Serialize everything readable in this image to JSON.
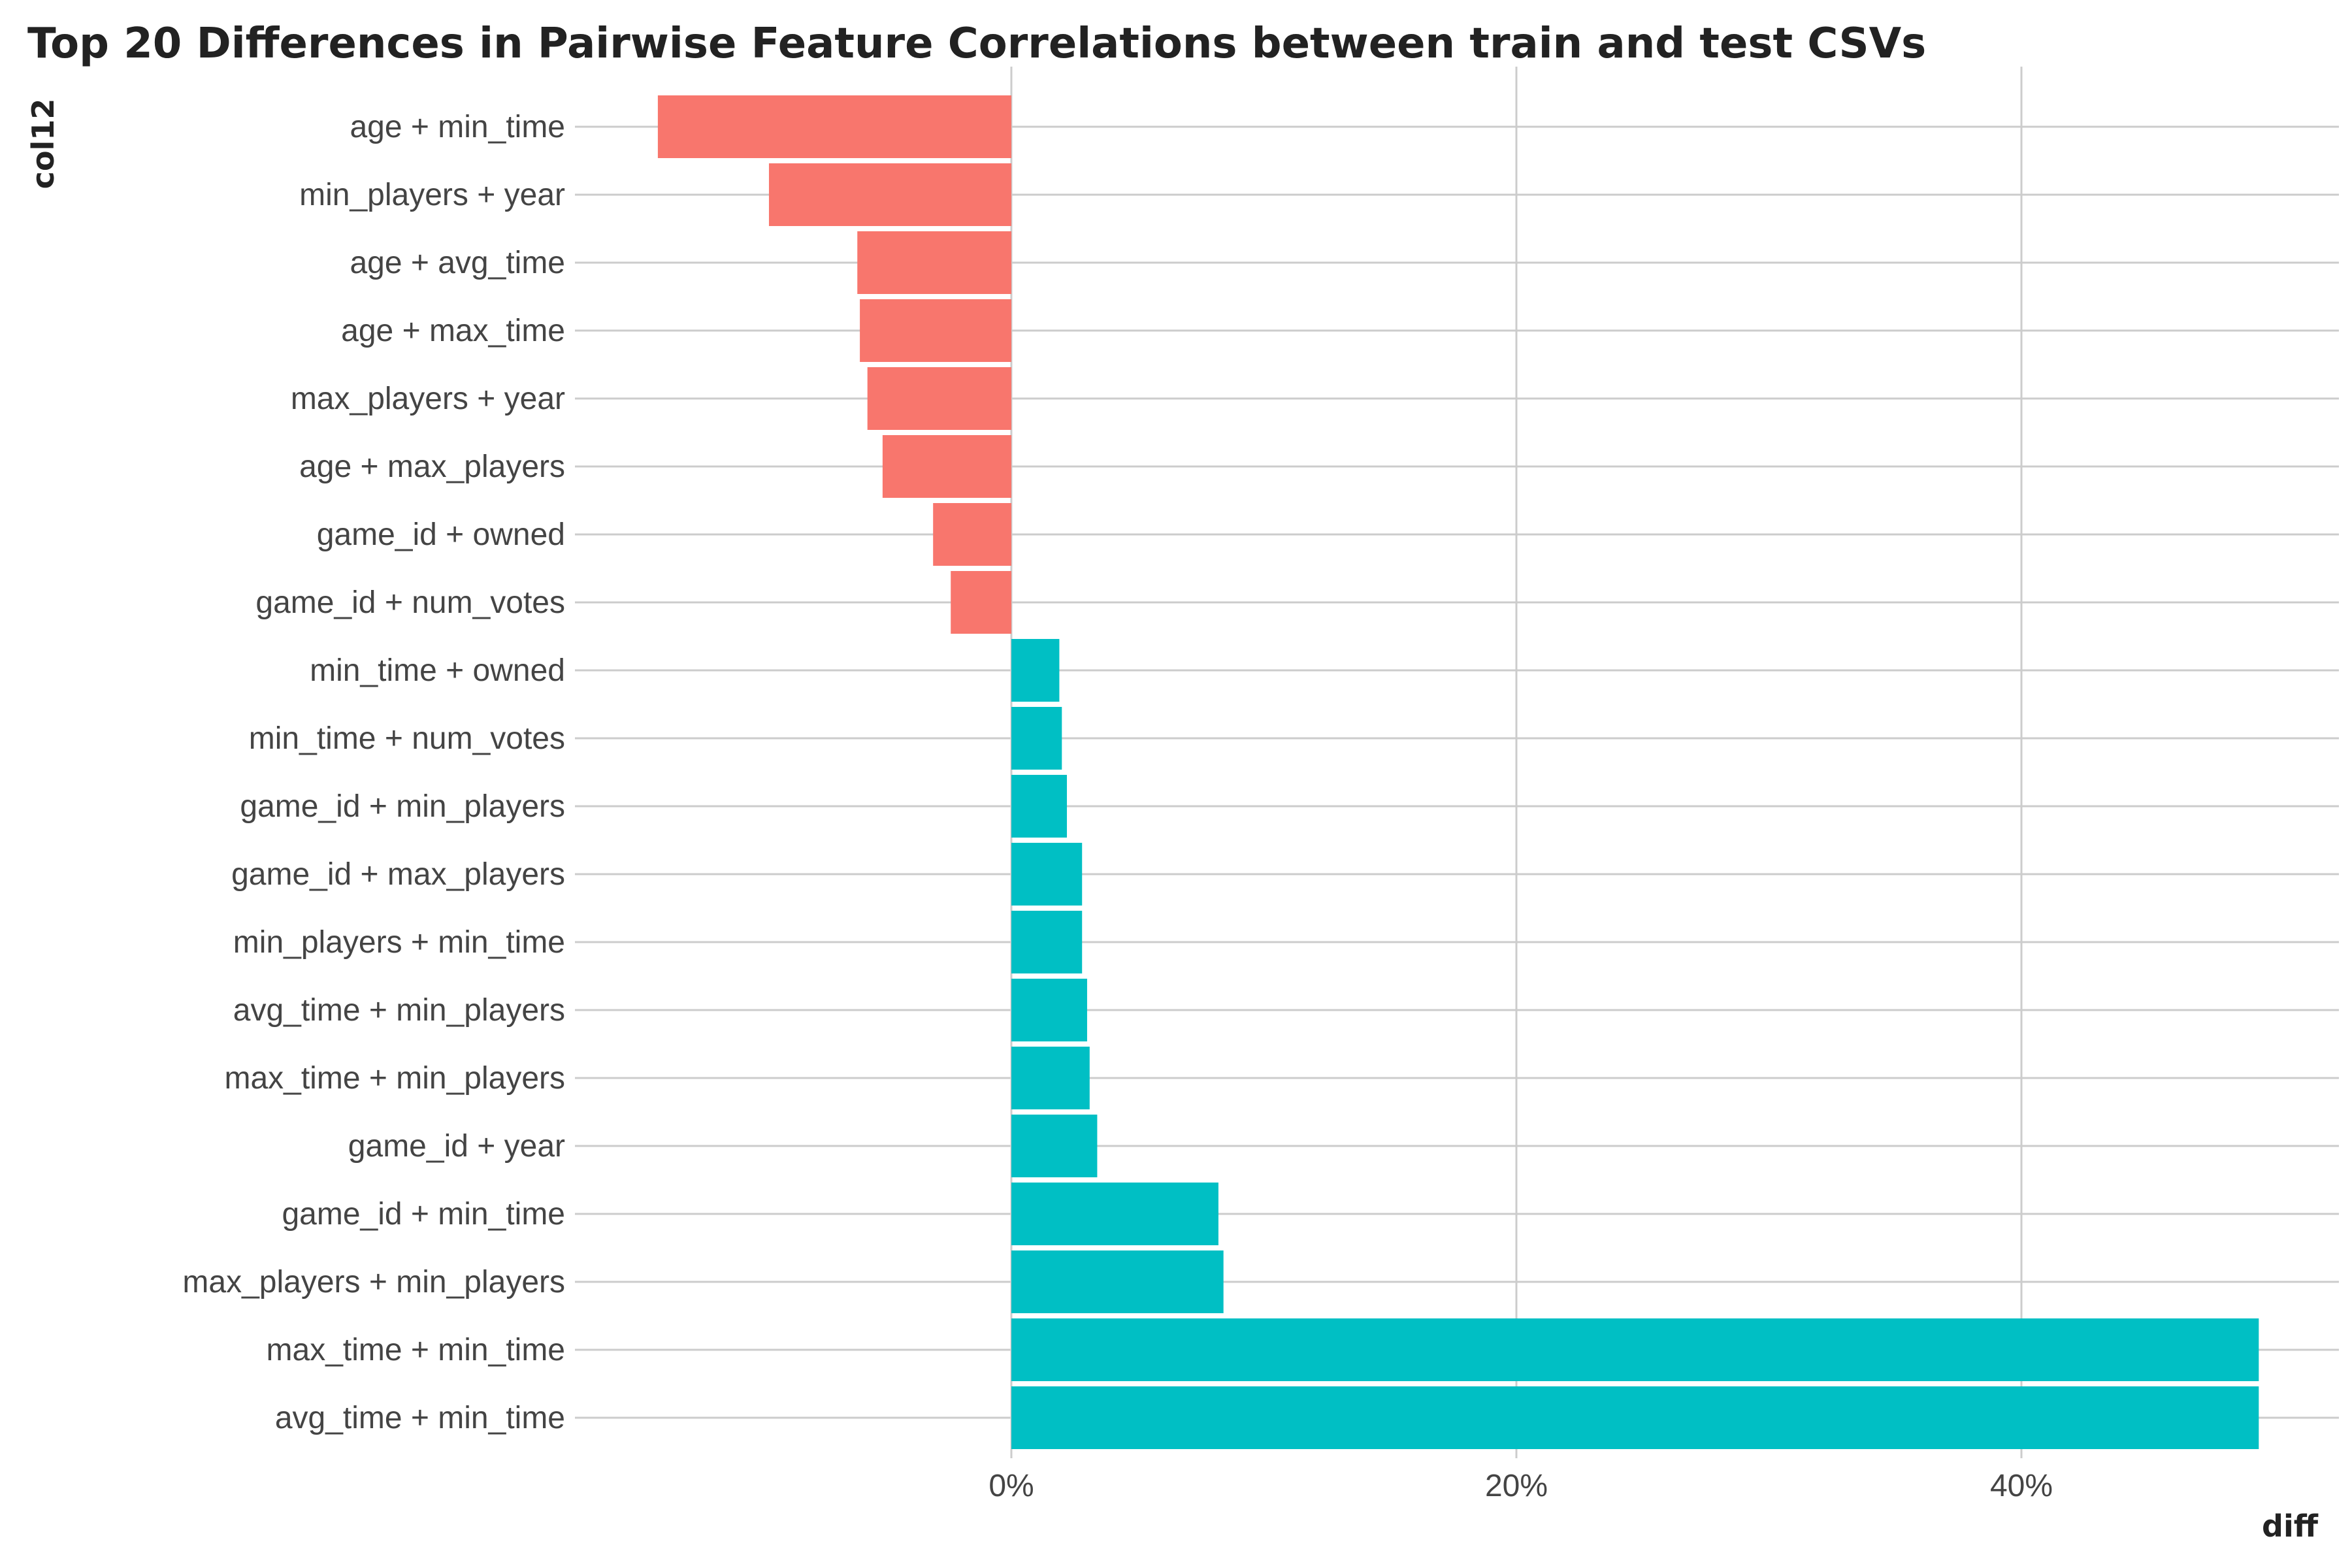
{
  "chart_data": {
    "type": "bar",
    "orientation": "horizontal",
    "title": "Top 20 Differences in Pairwise Feature Correlations between train and test CSVs",
    "xlabel": "diff",
    "ylabel": "col12",
    "xlim": [
      -0.17,
      0.52
    ],
    "x_ticks": [
      0,
      0.2,
      0.4
    ],
    "x_tick_labels": [
      "0%",
      "20%",
      "40%"
    ],
    "grid": true,
    "legend": "none",
    "colors": {
      "negative": "#F8766D",
      "positive": "#00BFC4"
    },
    "categories": [
      "age + min_time",
      "min_players + year",
      "age + avg_time",
      "age + max_time",
      "max_players + year",
      "age + max_players",
      "game_id + owned",
      "game_id + num_votes",
      "min_time + owned",
      "min_time + num_votes",
      "game_id + min_players",
      "game_id + max_players",
      "min_players + min_time",
      "avg_time + min_players",
      "max_time + min_players",
      "game_id + year",
      "game_id + min_time",
      "max_players + min_players",
      "max_time + min_time",
      "avg_time + min_time"
    ],
    "values": [
      -0.14,
      -0.096,
      -0.061,
      -0.06,
      -0.057,
      -0.051,
      -0.031,
      -0.024,
      0.019,
      0.02,
      0.022,
      0.028,
      0.028,
      0.03,
      0.031,
      0.034,
      0.082,
      0.084,
      0.494,
      0.494
    ]
  }
}
